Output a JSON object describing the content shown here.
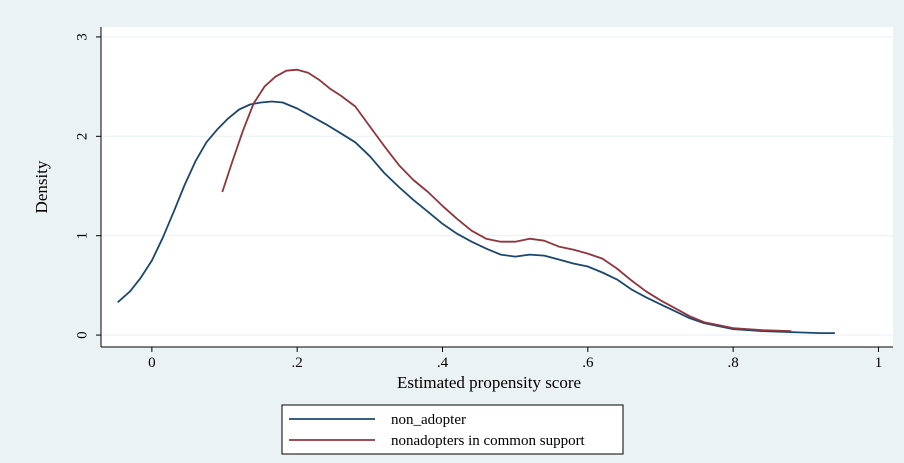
{
  "chart_data": {
    "type": "line",
    "title": "",
    "xlabel": "Estimated propensity score",
    "ylabel": "Density",
    "xlim": [
      -0.07,
      1.02
    ],
    "ylim": [
      -0.12,
      3.1
    ],
    "x_ticks": [
      {
        "value": 0,
        "label": "0"
      },
      {
        "value": 0.2,
        "label": ".2"
      },
      {
        "value": 0.4,
        "label": ".4"
      },
      {
        "value": 0.6,
        "label": ".6"
      },
      {
        "value": 0.8,
        "label": ".8"
      },
      {
        "value": 1,
        "label": "1"
      }
    ],
    "y_ticks": [
      {
        "value": 0,
        "label": "0"
      },
      {
        "value": 1,
        "label": "1"
      },
      {
        "value": 2,
        "label": "2"
      },
      {
        "value": 3,
        "label": "3"
      }
    ],
    "grid": "horizontal",
    "legend_position": "bottom",
    "colors": {
      "background": "#eaf2f3",
      "plot_background": "#ffffff",
      "non_adopter": "#1a476f",
      "common_support": "#90353b"
    },
    "series": [
      {
        "name": "non_adopter",
        "color": "#1a476f",
        "x": [
          -0.047,
          -0.03,
          -0.015,
          0.0,
          0.015,
          0.03,
          0.045,
          0.06,
          0.075,
          0.09,
          0.105,
          0.12,
          0.135,
          0.15,
          0.165,
          0.18,
          0.2,
          0.22,
          0.24,
          0.26,
          0.28,
          0.3,
          0.32,
          0.34,
          0.36,
          0.38,
          0.4,
          0.42,
          0.44,
          0.46,
          0.48,
          0.5,
          0.52,
          0.54,
          0.56,
          0.58,
          0.6,
          0.62,
          0.64,
          0.66,
          0.68,
          0.7,
          0.72,
          0.74,
          0.76,
          0.78,
          0.8,
          0.82,
          0.84,
          0.86,
          0.88,
          0.9,
          0.92,
          0.94
        ],
        "y": [
          0.33,
          0.44,
          0.58,
          0.75,
          0.98,
          1.24,
          1.51,
          1.75,
          1.94,
          2.07,
          2.18,
          2.27,
          2.32,
          2.34,
          2.35,
          2.34,
          2.28,
          2.2,
          2.12,
          2.03,
          1.94,
          1.8,
          1.63,
          1.49,
          1.36,
          1.24,
          1.12,
          1.02,
          0.94,
          0.87,
          0.81,
          0.79,
          0.81,
          0.8,
          0.76,
          0.72,
          0.69,
          0.63,
          0.56,
          0.46,
          0.38,
          0.31,
          0.24,
          0.17,
          0.12,
          0.09,
          0.06,
          0.05,
          0.04,
          0.035,
          0.03,
          0.025,
          0.02,
          0.02
        ]
      },
      {
        "name": "nonadopters in common support",
        "color": "#90353b",
        "x": [
          0.097,
          0.11,
          0.125,
          0.14,
          0.155,
          0.17,
          0.185,
          0.2,
          0.215,
          0.23,
          0.245,
          0.26,
          0.28,
          0.3,
          0.32,
          0.34,
          0.36,
          0.38,
          0.4,
          0.42,
          0.44,
          0.46,
          0.48,
          0.5,
          0.52,
          0.54,
          0.56,
          0.58,
          0.6,
          0.62,
          0.64,
          0.66,
          0.68,
          0.7,
          0.72,
          0.74,
          0.76,
          0.78,
          0.8,
          0.82,
          0.84,
          0.86,
          0.88
        ],
        "y": [
          1.44,
          1.73,
          2.05,
          2.33,
          2.5,
          2.6,
          2.66,
          2.67,
          2.64,
          2.57,
          2.48,
          2.41,
          2.3,
          2.1,
          1.9,
          1.71,
          1.56,
          1.44,
          1.3,
          1.17,
          1.05,
          0.97,
          0.94,
          0.94,
          0.97,
          0.95,
          0.89,
          0.86,
          0.82,
          0.77,
          0.67,
          0.55,
          0.44,
          0.35,
          0.27,
          0.19,
          0.13,
          0.1,
          0.07,
          0.06,
          0.05,
          0.045,
          0.04
        ]
      }
    ]
  }
}
